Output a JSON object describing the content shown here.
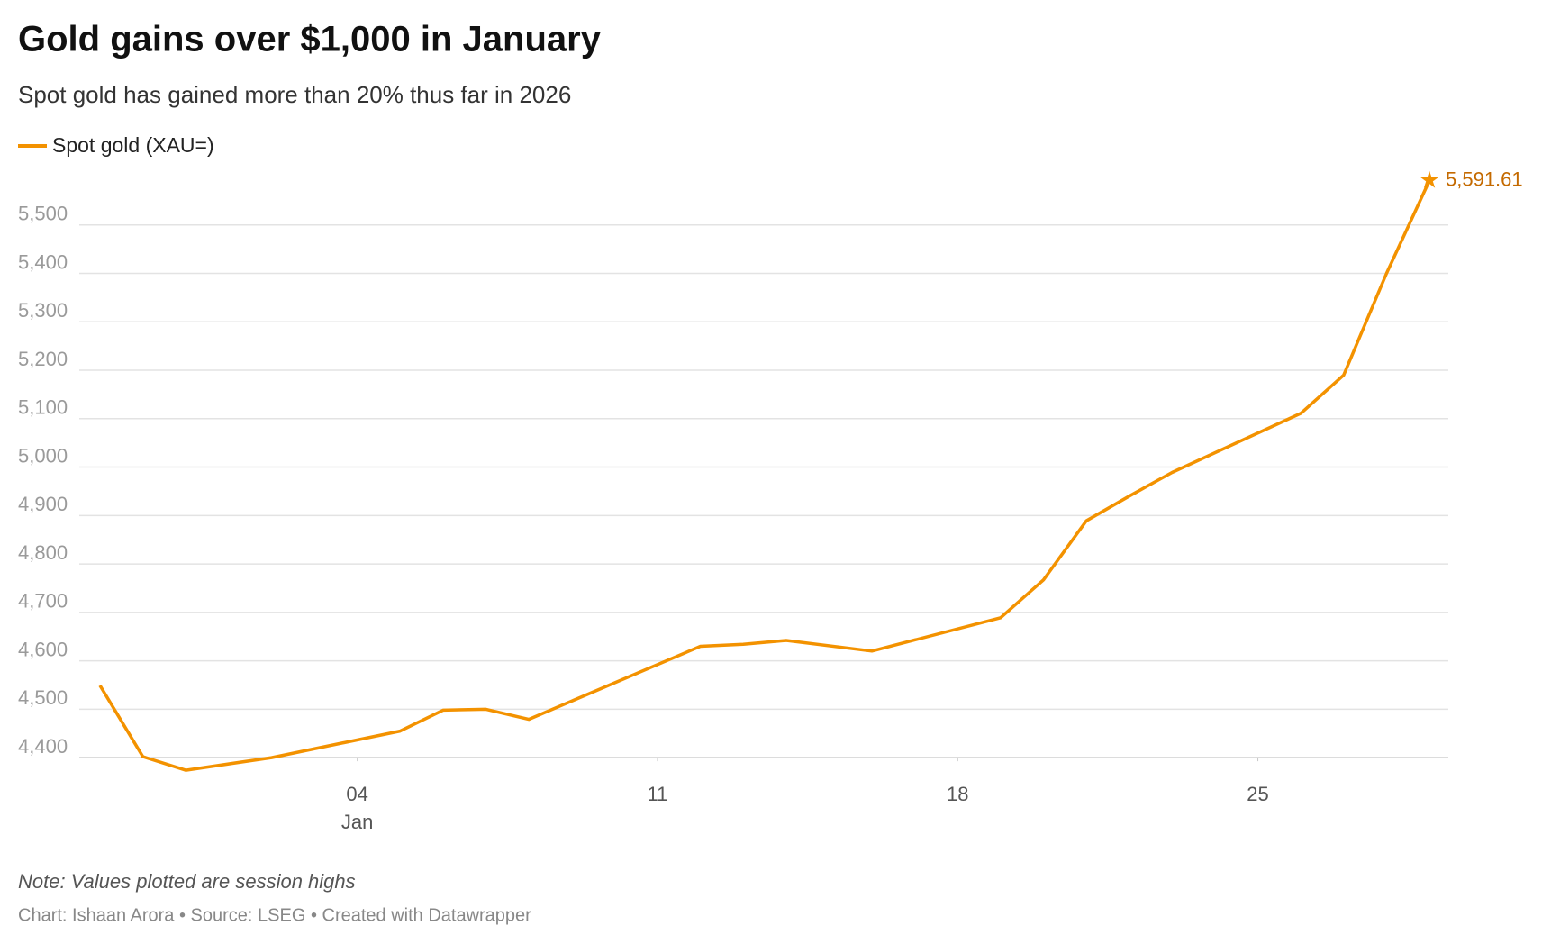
{
  "chart_data": {
    "type": "line",
    "title": "Gold gains over $1,000 in January",
    "subtitle": "Spot gold has gained more than 20% thus far in 2026",
    "note": "Note: Values plotted are session highs",
    "source": "Chart: Ishaan Arora • Source: LSEG • Created with Datawrapper",
    "x_period_label": "Jan",
    "x": [
      -2,
      -1,
      0,
      2,
      5,
      6,
      7,
      8,
      12,
      13,
      14,
      16,
      19,
      20,
      21,
      22,
      23,
      26,
      27,
      28,
      29
    ],
    "series": [
      {
        "name": "Spot gold (XAU=)",
        "color": "#f39200",
        "values": [
          4549,
          4402,
          4374,
          4400,
          4455,
          4498,
          4500,
          4479,
          4630,
          4634,
          4642,
          4620,
          4689,
          4767,
          4889,
          4940,
          4989,
          5111,
          5190,
          5400,
          5591.61
        ],
        "value_labels": [
          null,
          null,
          null,
          null,
          null,
          null,
          null,
          null,
          null,
          null,
          null,
          null,
          null,
          null,
          null,
          null,
          null,
          null,
          null,
          null,
          "5,591.61"
        ]
      }
    ],
    "xlim": [
      -2,
      29
    ],
    "xticks": [
      {
        "value": 4,
        "label": "04"
      },
      11,
      18,
      25
    ],
    "ylim": [
      4350,
      5600
    ],
    "yticks": [
      {
        "value": 4400,
        "label": "4,400"
      },
      {
        "value": 4500,
        "label": "4,500"
      },
      {
        "value": 4600,
        "label": "4,600"
      },
      {
        "value": 4700,
        "label": "4,700"
      },
      {
        "value": 4800,
        "label": "4,800"
      },
      {
        "value": 4900,
        "label": "4,900"
      },
      {
        "value": 5000,
        "label": "5,000"
      },
      {
        "value": 5100,
        "label": "5,100"
      },
      {
        "value": 5200,
        "label": "5,200"
      },
      {
        "value": 5300,
        "label": "5,300"
      },
      {
        "value": 5400,
        "label": "5,400"
      },
      {
        "value": 5500,
        "label": "5,500"
      }
    ],
    "grid": true
  }
}
